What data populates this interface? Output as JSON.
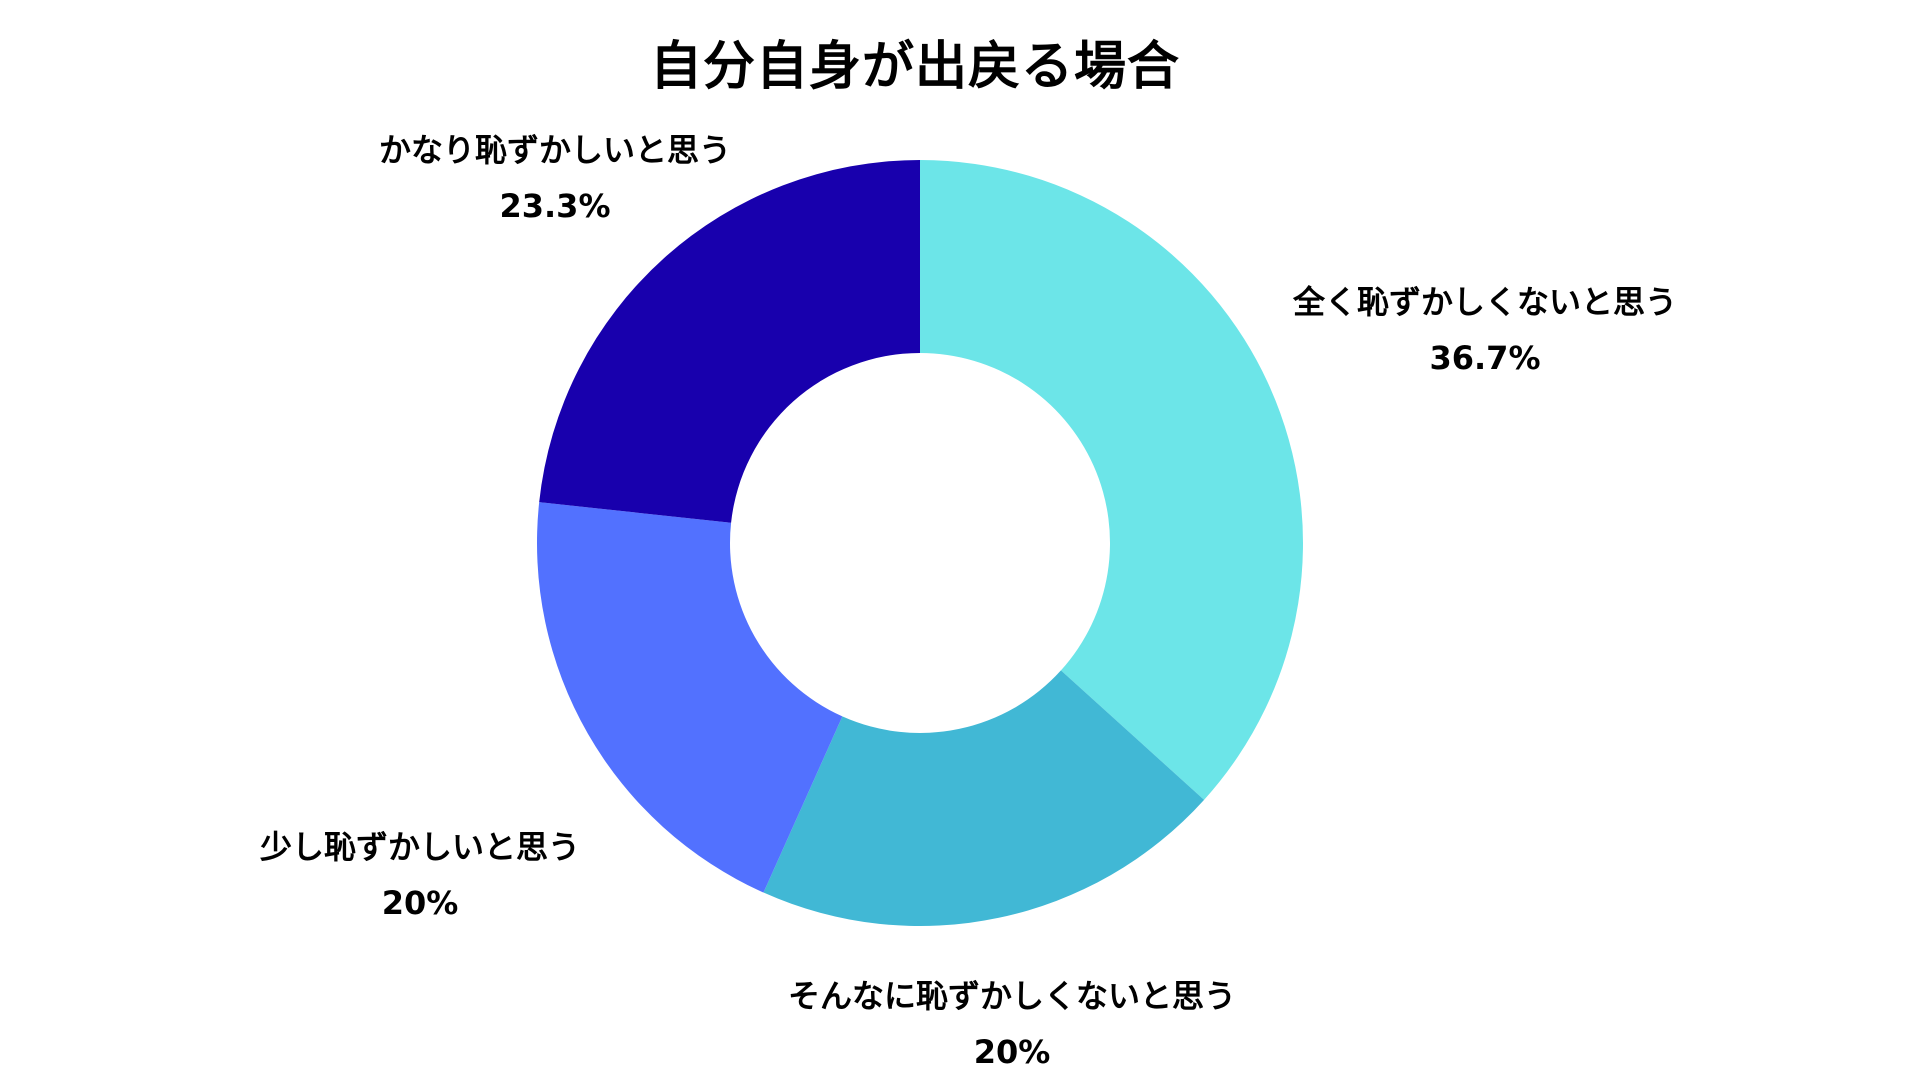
{
  "chart_data": {
    "type": "pie",
    "title": "自分自身が出戻る場合",
    "donut": true,
    "start": "top",
    "direction": "clockwise",
    "legend": "none",
    "series": [
      {
        "categories": [
          "全く恥ずかしくないと思う",
          "そんなに恥ずかしくないと思う",
          "少し恥ずかしいと思う",
          "かなり恥ずかしいと思う"
        ],
        "values": [
          36.7,
          20,
          20,
          23.3
        ],
        "value_labels": [
          "36.7%",
          "20%",
          "20%",
          "23.3%"
        ],
        "colors": [
          "#6ce5e8",
          "#41b8d5",
          "#5271ff",
          "#1800ad"
        ]
      }
    ]
  }
}
